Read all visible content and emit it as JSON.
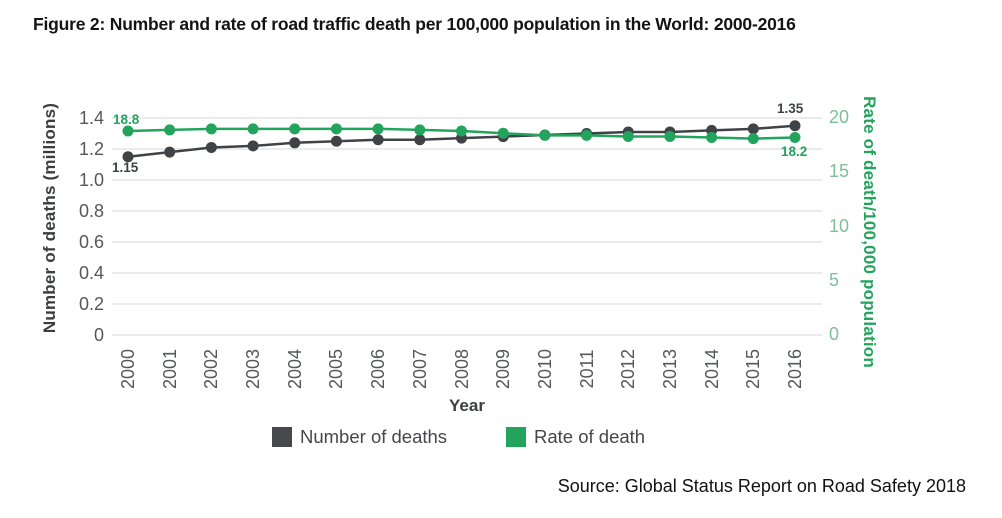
{
  "figure_title": "Figure 2: Number and rate of road traffic death per 100,000 population in the World: 2000-2016",
  "source_note": "Source: Global Status Report on Road Safety 2018",
  "colors": {
    "deaths_series": "#404346",
    "rate_series": "#22a45d",
    "gridline": "#d7d7d7",
    "axis_text": "#56575a",
    "rate_tick_text": "#7dbf9a"
  },
  "chart_data": {
    "type": "line",
    "title": "Figure 2: Number and rate of road traffic death per 100,000 population in the World: 2000-2016",
    "x": [
      2000,
      2001,
      2002,
      2003,
      2004,
      2005,
      2006,
      2007,
      2008,
      2009,
      2010,
      2011,
      2012,
      2013,
      2014,
      2015,
      2016
    ],
    "series": [
      {
        "name": "Number of deaths",
        "axis": "left",
        "color": "#404346",
        "values": [
          1.15,
          1.18,
          1.21,
          1.22,
          1.24,
          1.25,
          1.26,
          1.26,
          1.27,
          1.28,
          1.29,
          1.3,
          1.31,
          1.31,
          1.32,
          1.33,
          1.35
        ]
      },
      {
        "name": "Rate of death",
        "axis": "right",
        "color": "#22a45d",
        "values": [
          18.8,
          18.9,
          19.0,
          19.0,
          19.0,
          19.0,
          19.0,
          18.9,
          18.8,
          18.6,
          18.4,
          18.4,
          18.3,
          18.3,
          18.2,
          18.1,
          18.2
        ]
      }
    ],
    "left_axis": {
      "label": "Number of deaths (millions)",
      "range": [
        0,
        1.4
      ],
      "ticks": [
        "1.4",
        "1.2",
        "1.0",
        "0.8",
        "0.6",
        "0.4",
        "0.2",
        "0"
      ]
    },
    "right_axis": {
      "label": "Rate of death/100,000 population",
      "range": [
        0,
        20
      ],
      "ticks": [
        "20",
        "15",
        "10",
        "5",
        "0"
      ]
    },
    "x_axis": {
      "label": "Year"
    },
    "grid": "horizontal",
    "legend_position": "bottom",
    "annotations": [
      {
        "text": "18.8",
        "series": "Rate of death",
        "year": 2000,
        "position": "above-start"
      },
      {
        "text": "1.15",
        "series": "Number of deaths",
        "year": 2000,
        "position": "below-start"
      },
      {
        "text": "1.35",
        "series": "Number of deaths",
        "year": 2016,
        "position": "above-end"
      },
      {
        "text": "18.2",
        "series": "Rate of death",
        "year": 2016,
        "position": "below-end"
      }
    ],
    "legend": [
      {
        "label": "Number of deaths",
        "color": "#47484b"
      },
      {
        "label": "Rate of death",
        "color": "#22a45d"
      }
    ]
  }
}
